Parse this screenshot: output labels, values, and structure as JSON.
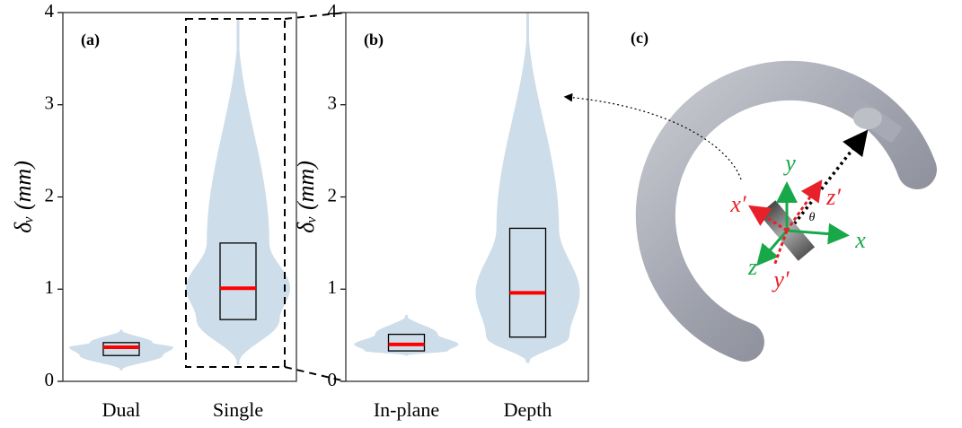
{
  "chart_data": [
    {
      "type": "violin",
      "panel_label": "(a)",
      "y_label": "δᵥ (mm)",
      "categories": [
        "Dual",
        "Single"
      ],
      "series": [
        {
          "color": "#cddde9",
          "box_color": "#000000",
          "median_color": "#ff0000",
          "min": [
            0.12,
            0.18
          ],
          "q1": [
            0.28,
            0.67
          ],
          "median": [
            0.37,
            1.01
          ],
          "q3": [
            0.42,
            1.5
          ],
          "max": [
            0.56,
            3.92
          ]
        }
      ],
      "ylim": [
        0,
        4
      ],
      "yticks": [
        0,
        1,
        2,
        3,
        4
      ]
    },
    {
      "type": "violin",
      "panel_label": "(b)",
      "y_label": "δᵥ (mm)",
      "categories": [
        "In-plane",
        "Depth"
      ],
      "series": [
        {
          "color": "#cddde9",
          "box_color": "#000000",
          "median_color": "#ff0000",
          "min": [
            0.28,
            0.2
          ],
          "q1": [
            0.33,
            0.48
          ],
          "median": [
            0.4,
            0.96
          ],
          "q3": [
            0.51,
            1.66
          ],
          "max": [
            0.72,
            4.0
          ]
        }
      ],
      "ylim": [
        0,
        4
      ],
      "yticks": [
        0,
        1,
        2,
        3,
        4
      ]
    }
  ],
  "illustration": {
    "panel_label": "(c)",
    "labels": {
      "y": "y",
      "x_prime": "x′",
      "z_prime": "z′",
      "theta": "θ",
      "x": "x",
      "z": "z",
      "y_prime": "y′"
    }
  }
}
